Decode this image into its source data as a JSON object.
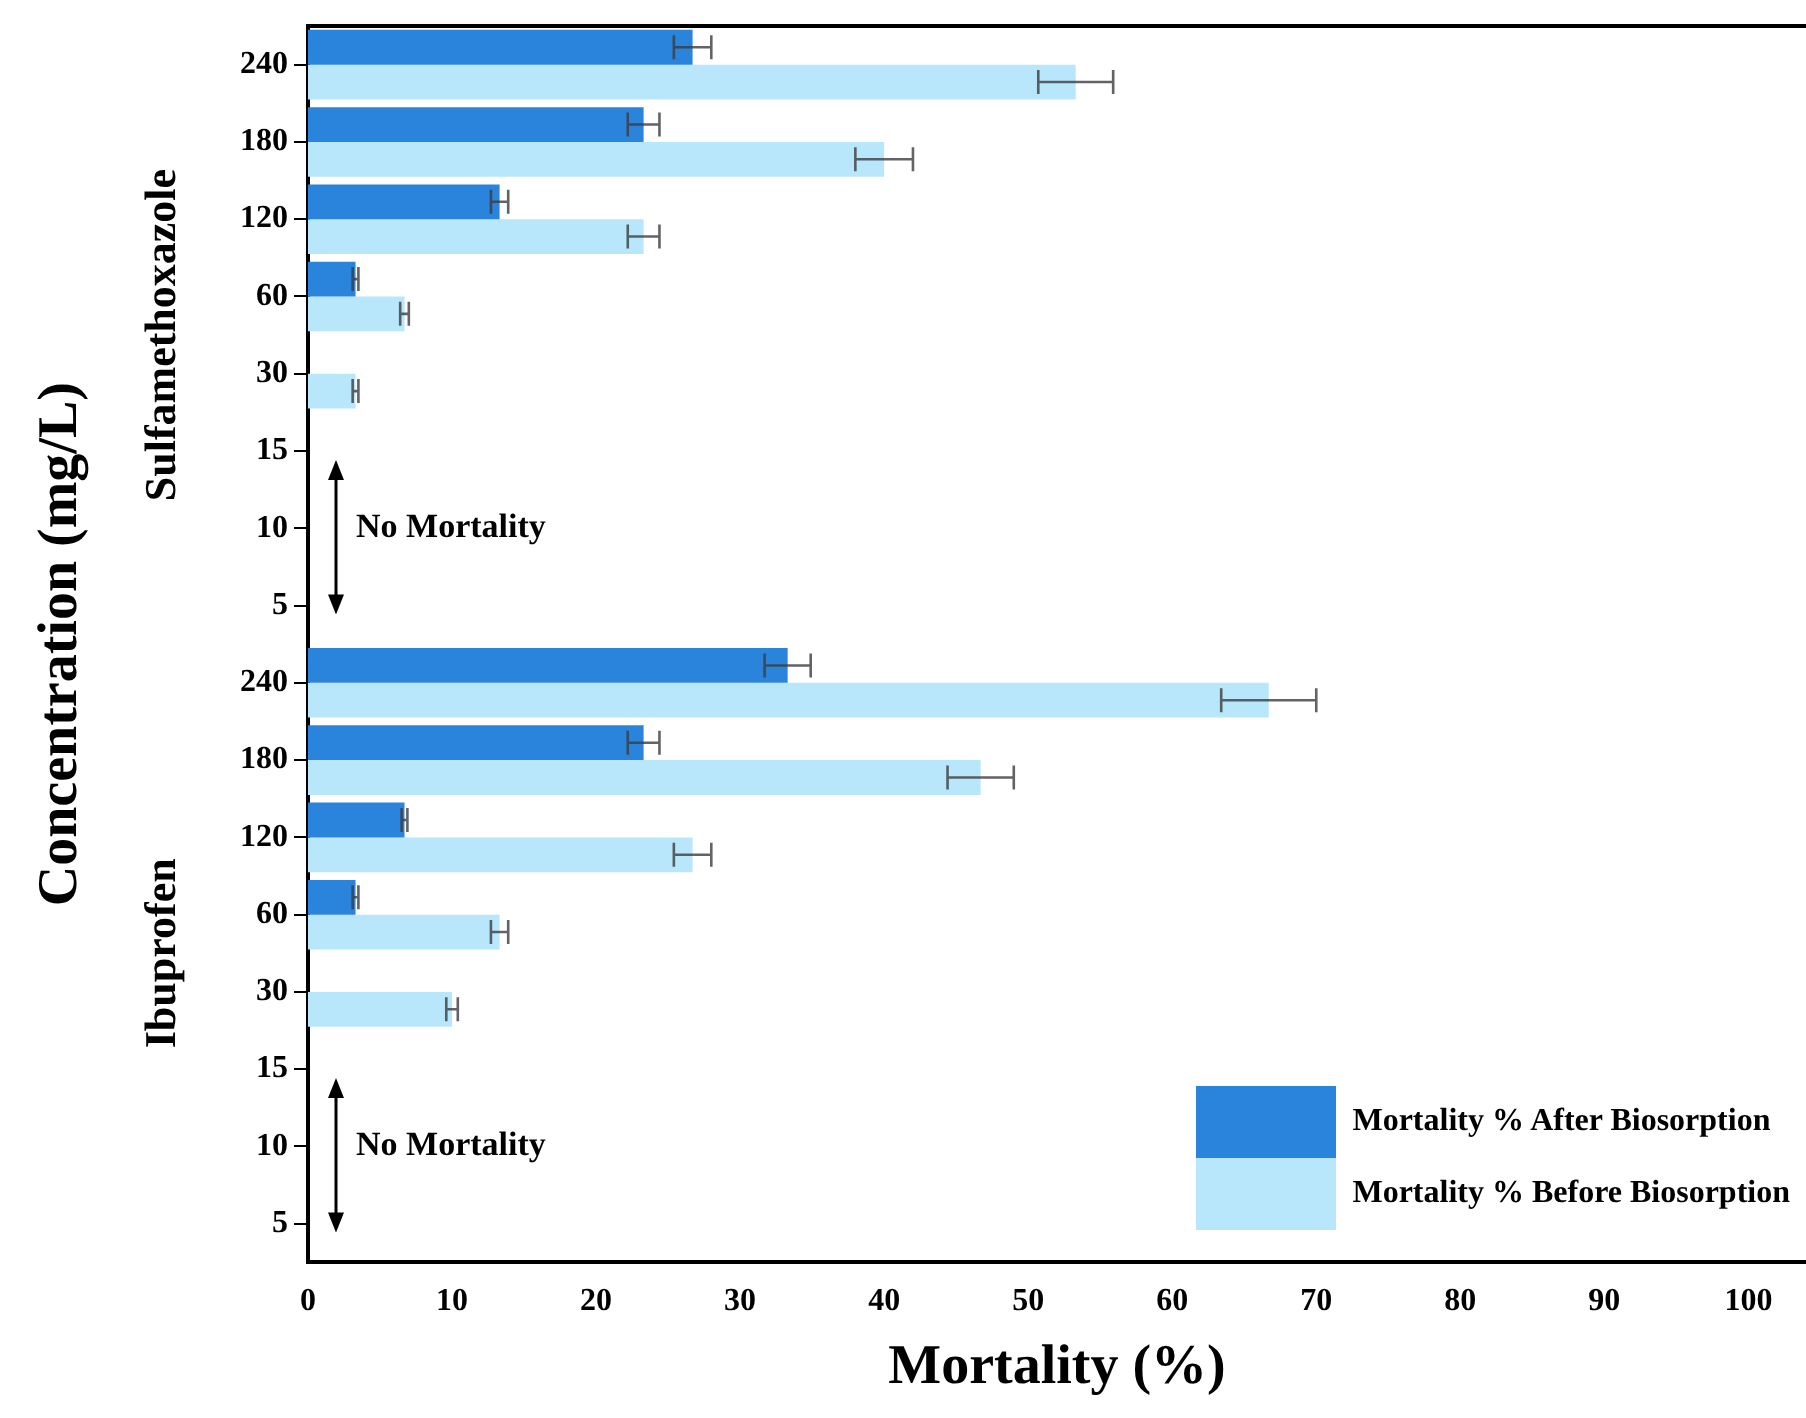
{
  "chart_data": {
    "type": "bar",
    "orientation": "horizontal",
    "xlabel": "Mortality (%)",
    "ylabel": "Concentration (mg/L)",
    "categories": [
      "240",
      "180",
      "120",
      "60",
      "30",
      "15",
      "10",
      "5",
      "240",
      "180",
      "120",
      "60",
      "30",
      "15",
      "10",
      "5"
    ],
    "series": [
      {
        "name": "Mortality % After Biosorption",
        "color": "#2a84dc",
        "values": [
          26.7,
          23.3,
          13.3,
          3.3,
          0,
          0,
          0,
          0,
          33.3,
          23.3,
          6.7,
          3.3,
          0,
          0,
          0,
          0
        ],
        "errors": [
          1.3,
          1.1,
          0.6,
          0.2,
          null,
          null,
          null,
          null,
          1.6,
          1.1,
          0.2,
          0.2,
          null,
          null,
          null,
          null
        ]
      },
      {
        "name": "Mortality % Before Biosorption",
        "color": "#b8e6fb",
        "values": [
          53.3,
          40,
          23.3,
          6.7,
          3.3,
          0,
          0,
          0,
          66.7,
          46.7,
          26.7,
          13.3,
          10,
          0,
          0,
          0
        ],
        "errors": [
          2.6,
          2,
          1.1,
          0.3,
          0.2,
          null,
          null,
          null,
          3.3,
          2.3,
          1.3,
          0.6,
          0.4,
          null,
          null,
          null
        ]
      }
    ],
    "xlim": [
      0,
      104
    ],
    "xticks": [
      0,
      10,
      20,
      30,
      40,
      50,
      60,
      70,
      80,
      90,
      100
    ],
    "grid": false,
    "legend": "bottom right",
    "annotations": [
      "Sulfamethoxazole",
      "Ibuprofen",
      "No Mortality",
      "No Mortality"
    ]
  }
}
